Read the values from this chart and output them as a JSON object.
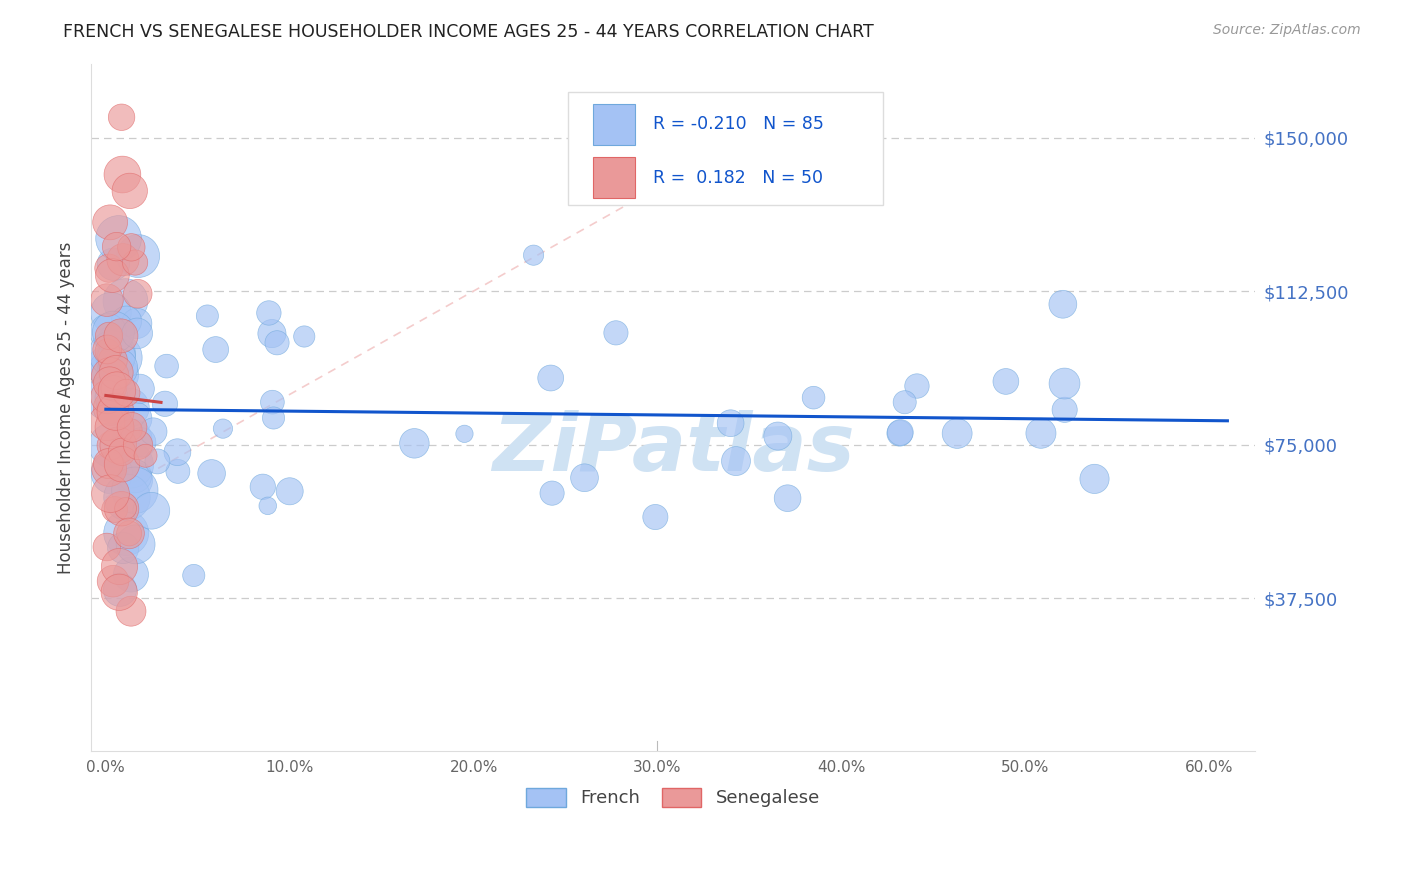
{
  "title": "FRENCH VS SENEGALESE HOUSEHOLDER INCOME AGES 25 - 44 YEARS CORRELATION CHART",
  "source": "Source: ZipAtlas.com",
  "ylabel": "Householder Income Ages 25 - 44 years",
  "ytick_labels": [
    "$37,500",
    "$75,000",
    "$112,500",
    "$150,000"
  ],
  "ytick_values": [
    37500,
    75000,
    112500,
    150000
  ],
  "xlabel_ticks": [
    "0.0%",
    "10.0%",
    "20.0%",
    "30.0%",
    "40.0%",
    "50.0%",
    "60.0%"
  ],
  "xtick_vals": [
    0.0,
    0.1,
    0.2,
    0.3,
    0.4,
    0.5,
    0.6
  ],
  "ymin": 0,
  "ymax": 168000,
  "xmin": -0.008,
  "xmax": 0.625,
  "french_R": -0.21,
  "french_N": 85,
  "senegalese_R": 0.182,
  "senegalese_N": 50,
  "french_color": "#a4c2f4",
  "french_edge_color": "#6fa8dc",
  "senegalese_color": "#ea9999",
  "senegalese_edge_color": "#e06666",
  "french_line_color": "#1155cc",
  "senegalese_line_color": "#cc4444",
  "ref_line_color": "#f4cccc",
  "watermark": "ZiPatlas",
  "watermark_color": "#cfe2f3",
  "background_color": "#ffffff",
  "grid_color": "#cccccc",
  "title_color": "#222222",
  "source_color": "#999999",
  "ylabel_color": "#444444",
  "ytick_color": "#4472c4",
  "xtick_color": "#666666",
  "legend_box_color": "#dddddd",
  "legend_text_color": "#1155cc"
}
